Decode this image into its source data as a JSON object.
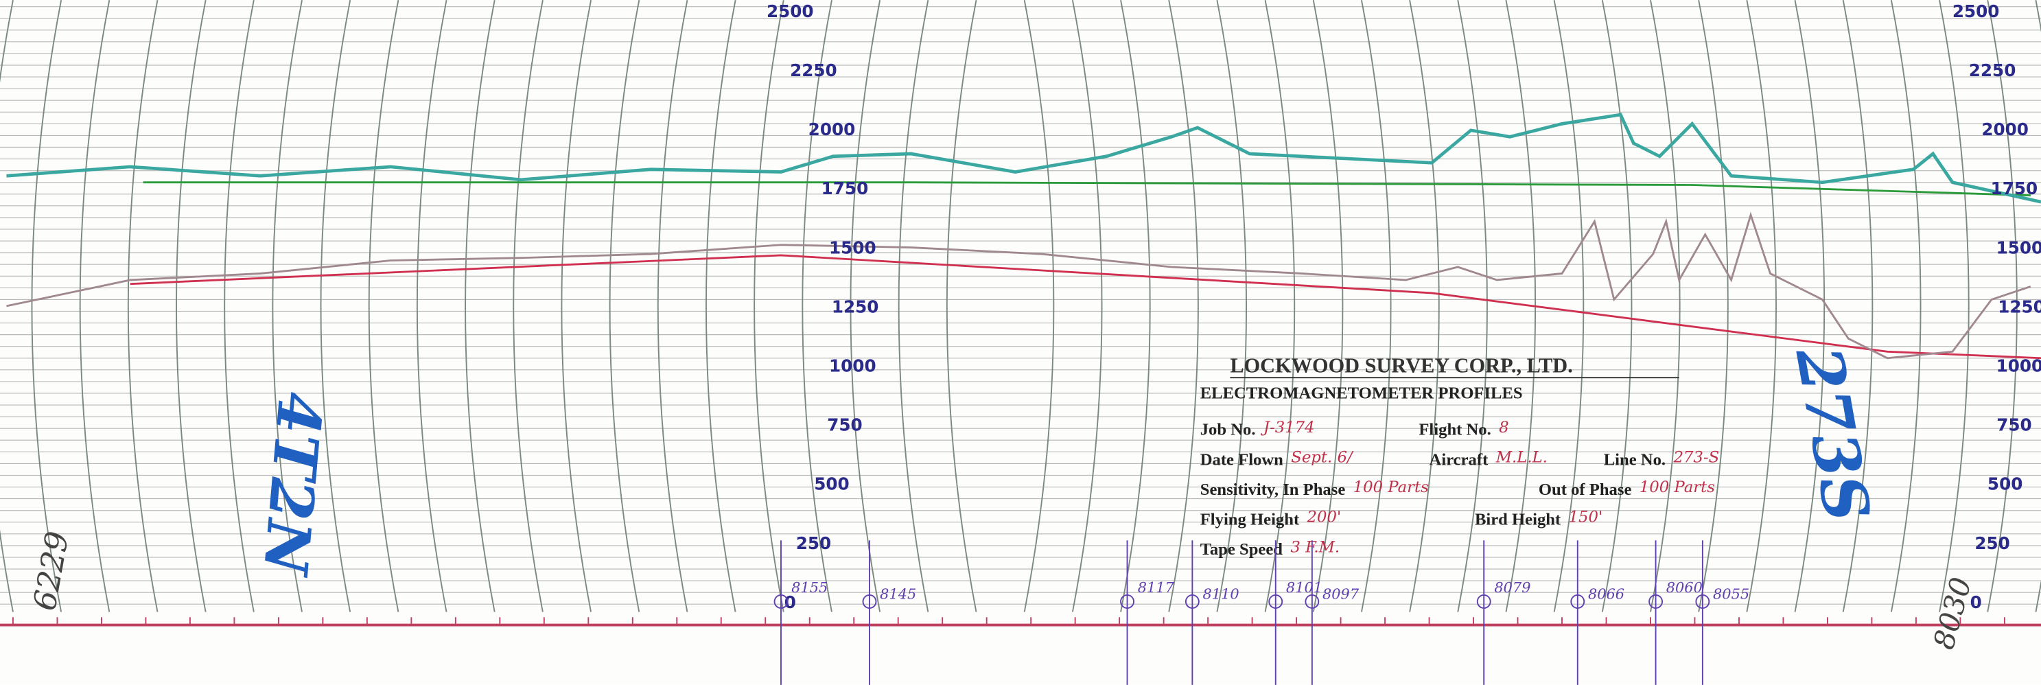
{
  "scale": {
    "ticks": [
      2500,
      2250,
      2000,
      1750,
      1500,
      1250,
      1000,
      750,
      500,
      250,
      0
    ]
  },
  "title_block": {
    "company": "LOCKWOOD SURVEY CORP., LTD.",
    "subtitle": "ELECTROMAGNETOMETER PROFILES",
    "fields": [
      {
        "label": "Job No.",
        "value": "J-3174"
      },
      {
        "label": "Flight No.",
        "value": "8"
      },
      {
        "label": "Date Flown",
        "value": "Sept. 6/"
      },
      {
        "label": "Aircraft",
        "value": "M.L.L."
      },
      {
        "label": "Line No.",
        "value": "273-S"
      },
      {
        "label": "Sensitivity, In Phase",
        "value": "100 Parts"
      },
      {
        "label": "Out of Phase",
        "value": "100 Parts"
      },
      {
        "label": "Flying Height",
        "value": "200'"
      },
      {
        "label": "Bird Height",
        "value": "150'"
      },
      {
        "label": "Tape Speed",
        "value": "3 F.M."
      }
    ]
  },
  "fiducials": [
    "8155",
    "8145",
    "8117",
    "8110",
    "8101",
    "8097",
    "8079",
    "8066",
    "8060",
    "8055"
  ],
  "annotations": {
    "left_number": "6229",
    "left_note": "4T2N",
    "right_number": "8030",
    "right_note": "273S"
  }
}
